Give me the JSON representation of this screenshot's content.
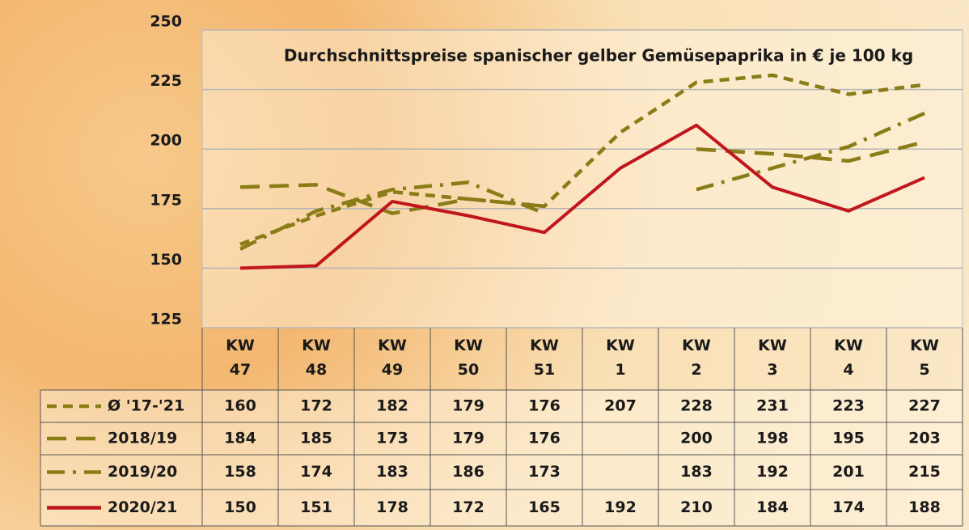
{
  "chart_data": {
    "type": "line",
    "title": "Durchschnittspreise spanischer gelber Gemüsepaprika in € je 100 kg",
    "categories": [
      "KW 47",
      "KW 48",
      "KW 49",
      "KW 50",
      "KW 51",
      "KW 1",
      "KW 2",
      "KW 3",
      "KW 4",
      "KW 5"
    ],
    "series": [
      {
        "name": "Ø '17-'21",
        "color": "#8a7c16",
        "line_style": "short-dash",
        "values": [
          160,
          172,
          182,
          179,
          176,
          207,
          228,
          231,
          223,
          227
        ]
      },
      {
        "name": "2018/19",
        "color": "#8a7c16",
        "line_style": "long-dash",
        "values": [
          184,
          185,
          173,
          179,
          176,
          null,
          200,
          198,
          195,
          203
        ]
      },
      {
        "name": "2019/20",
        "color": "#8a7c16",
        "line_style": "dash-dot",
        "values": [
          158,
          174,
          183,
          186,
          173,
          null,
          183,
          192,
          201,
          215
        ]
      },
      {
        "name": "2020/21",
        "color": "#c0161c",
        "line_style": "solid",
        "values": [
          150,
          151,
          178,
          172,
          165,
          192,
          210,
          184,
          174,
          188
        ]
      }
    ],
    "ylim": [
      125,
      250
    ],
    "yticks": [
      125,
      150,
      175,
      200,
      225,
      250
    ],
    "grid": true
  }
}
